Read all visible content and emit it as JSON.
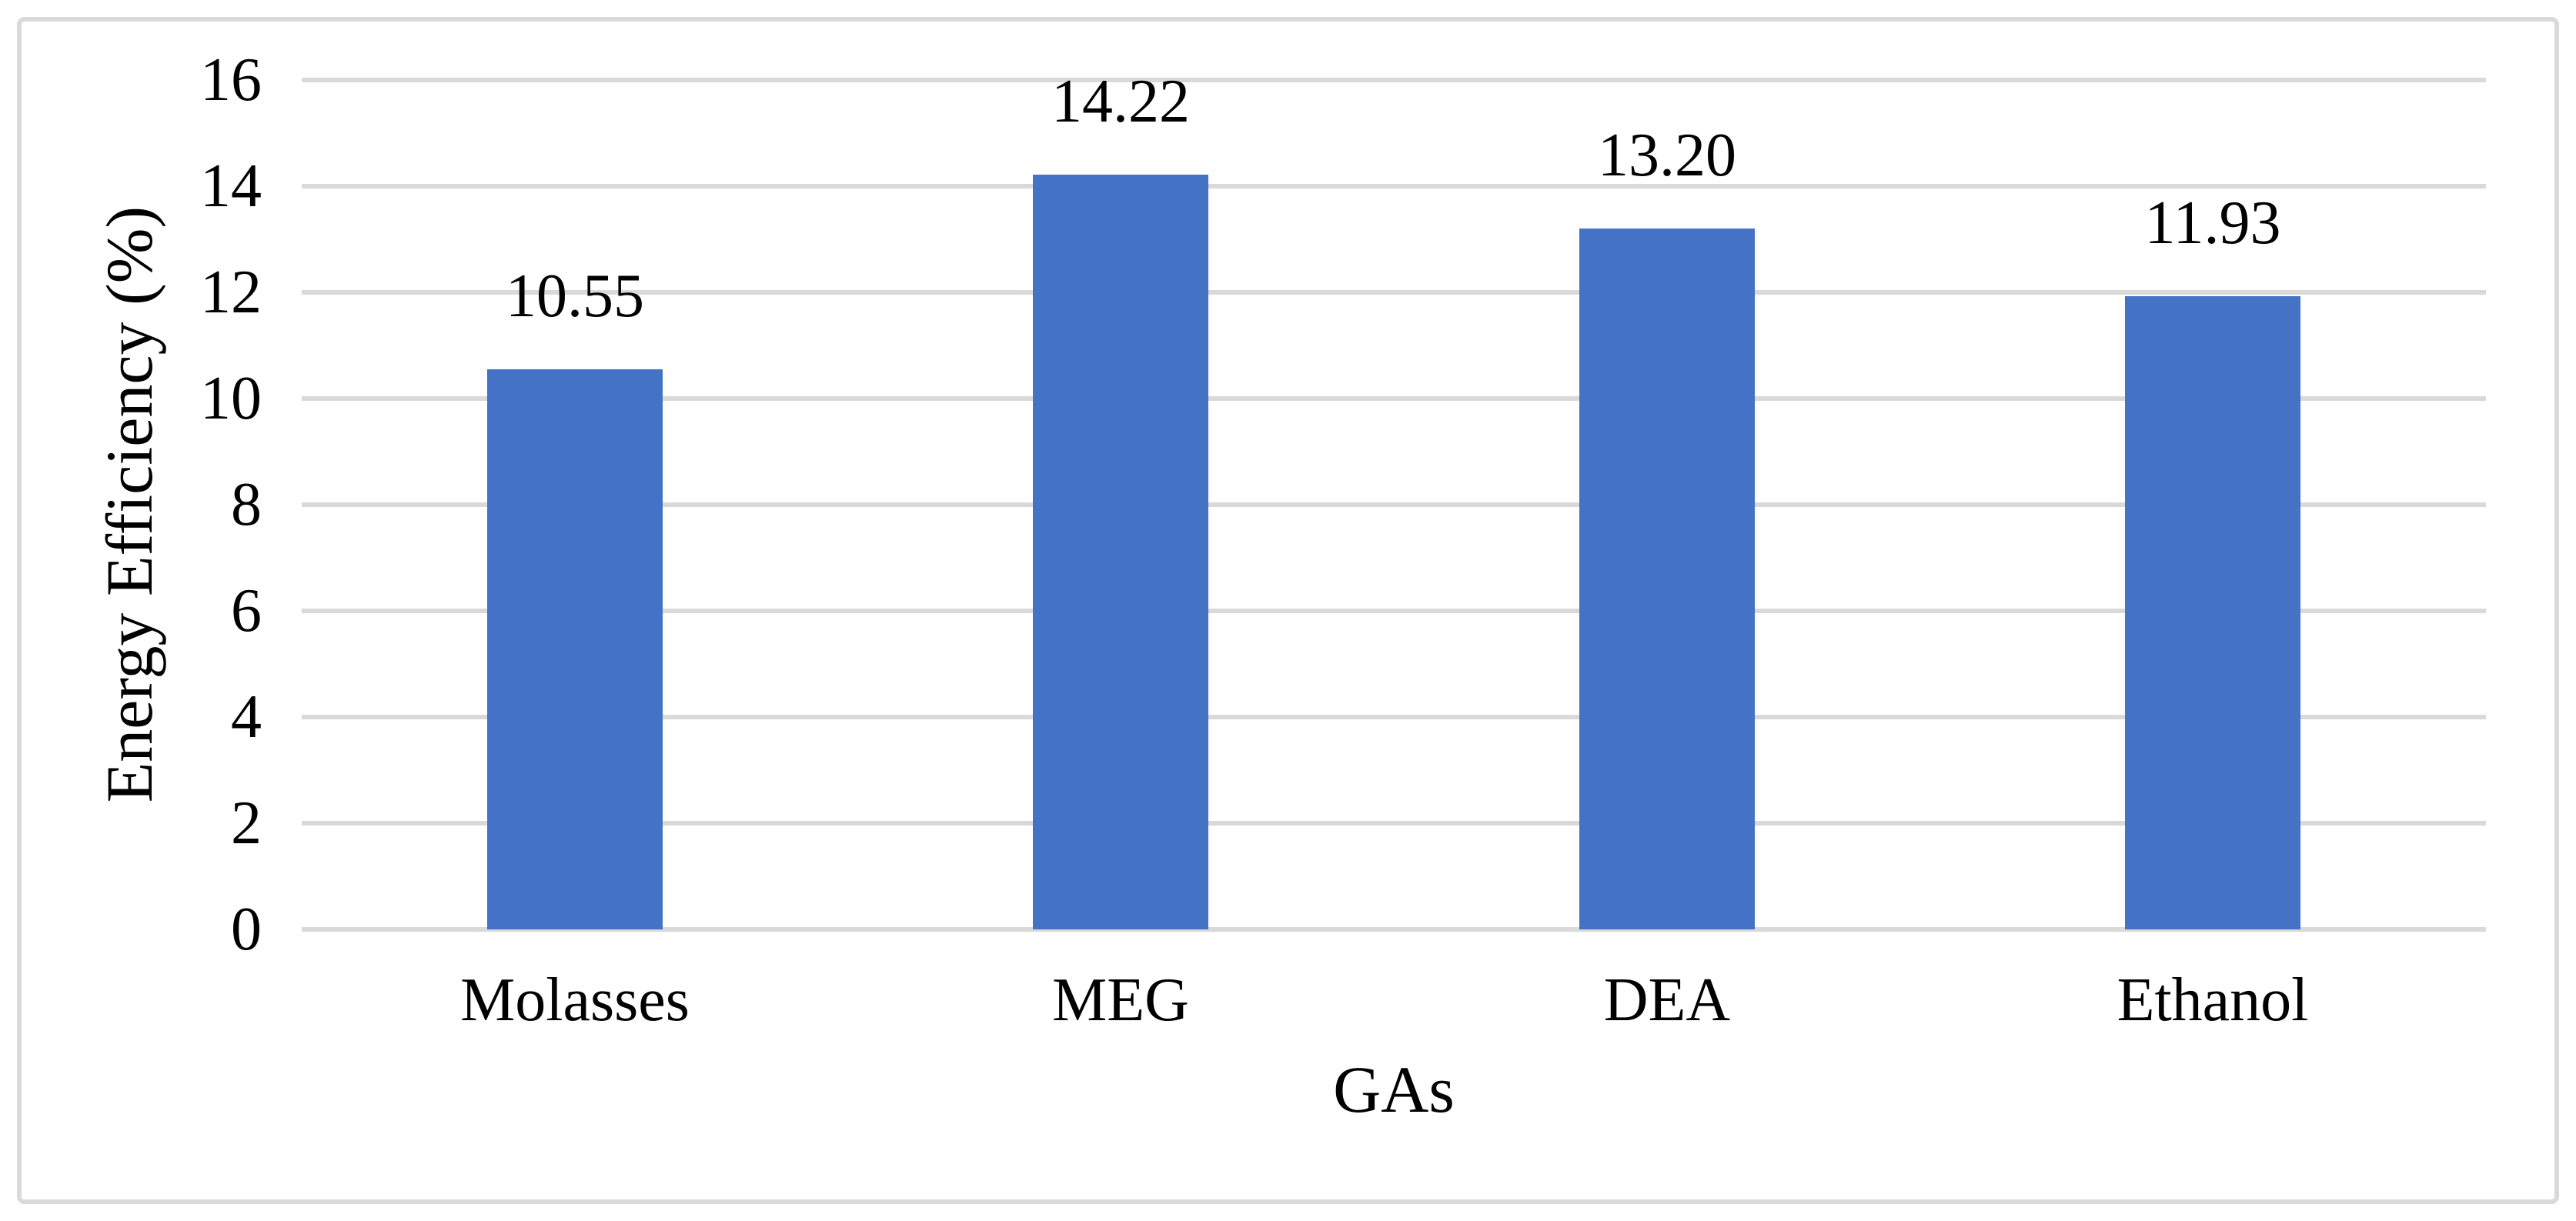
{
  "figure": {
    "background_color": "#FFFFFF",
    "border_color": "#D9D9D9",
    "text_color": "#000000"
  },
  "chart_data": {
    "type": "bar",
    "title": "",
    "categories": [
      "Molasses",
      "MEG",
      "DEA",
      "Ethanol"
    ],
    "values": [
      10.55,
      14.22,
      13.2,
      11.93
    ],
    "data_labels": [
      "10.55",
      "14.22",
      "13.20",
      "11.93"
    ],
    "xlabel": "GAs",
    "ylabel": "Energy Efficiency (%)",
    "ylim": [
      0,
      16
    ],
    "yticks": [
      0,
      2,
      4,
      6,
      8,
      10,
      12,
      14,
      16
    ],
    "grid": true,
    "legend": "none",
    "bar_color": "#4472C4",
    "gridline_color": "#D9D9D9"
  }
}
